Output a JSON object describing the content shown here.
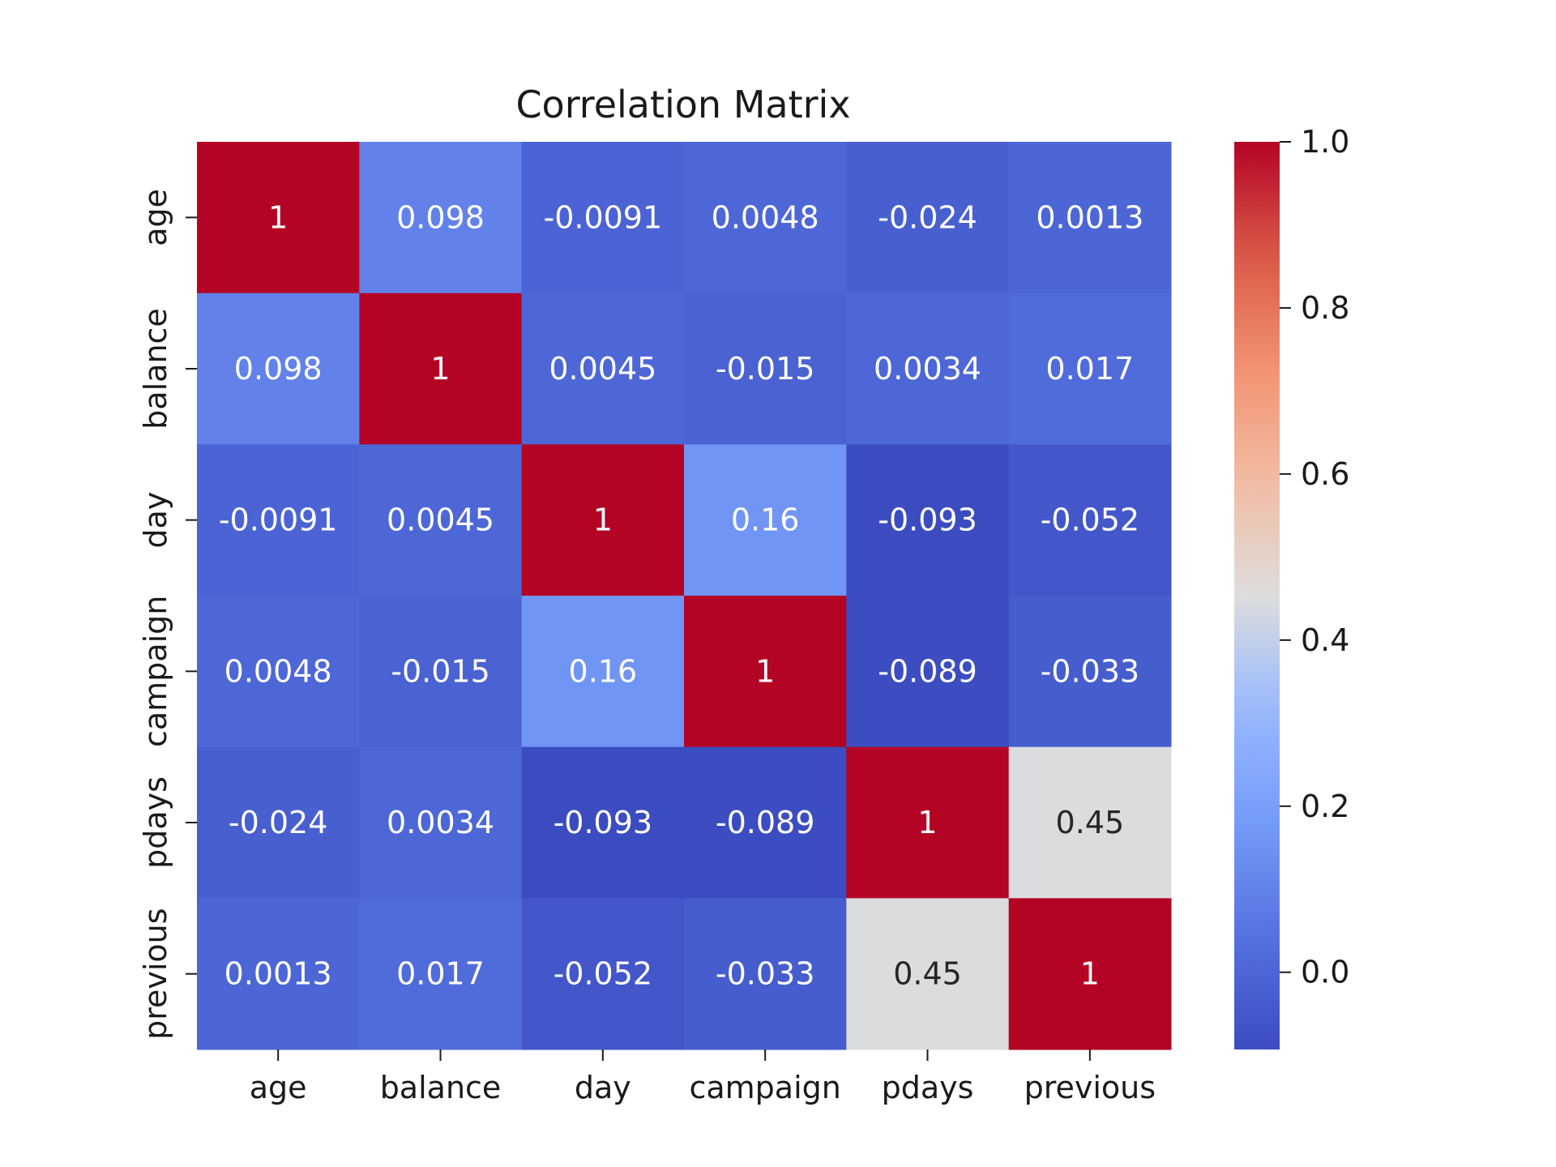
{
  "chart_data": {
    "type": "heatmap",
    "title": "Correlation Matrix",
    "xlabel": "",
    "ylabel": "",
    "x": [
      "age",
      "balance",
      "day",
      "campaign",
      "pdays",
      "previous"
    ],
    "y": [
      "age",
      "balance",
      "day",
      "campaign",
      "pdays",
      "previous"
    ],
    "values": [
      [
        1,
        0.098,
        -0.0091,
        0.0048,
        -0.024,
        0.0013
      ],
      [
        0.098,
        1,
        0.0045,
        -0.015,
        0.0034,
        0.017
      ],
      [
        -0.0091,
        0.0045,
        1,
        0.16,
        -0.093,
        -0.052
      ],
      [
        0.0048,
        -0.015,
        0.16,
        1,
        -0.089,
        -0.033
      ],
      [
        -0.024,
        0.0034,
        -0.093,
        -0.089,
        1,
        0.45
      ],
      [
        0.0013,
        0.017,
        -0.052,
        -0.033,
        0.45,
        1
      ]
    ],
    "annotations": [
      [
        "1",
        "0.098",
        "-0.0091",
        "0.0048",
        "-0.024",
        "0.0013"
      ],
      [
        "0.098",
        "1",
        "0.0045",
        "-0.015",
        "0.0034",
        "0.017"
      ],
      [
        "-0.0091",
        "0.0045",
        "1",
        "0.16",
        "-0.093",
        "-0.052"
      ],
      [
        "0.0048",
        "-0.015",
        "0.16",
        "1",
        "-0.089",
        "-0.033"
      ],
      [
        "-0.024",
        "0.0034",
        "-0.093",
        "-0.089",
        "1",
        "0.45"
      ],
      [
        "0.0013",
        "0.017",
        "-0.052",
        "-0.033",
        "0.45",
        "1"
      ]
    ],
    "colormap": "coolwarm",
    "vmin": -0.093,
    "vmax": 1.0,
    "colorbar": {
      "ticks": [
        0.0,
        0.2,
        0.4,
        0.6,
        0.8,
        1.0
      ],
      "tick_labels": [
        "0.0",
        "0.2",
        "0.4",
        "0.6",
        "0.8",
        "1.0"
      ]
    },
    "grid": false,
    "legend": "colorbar-right"
  }
}
